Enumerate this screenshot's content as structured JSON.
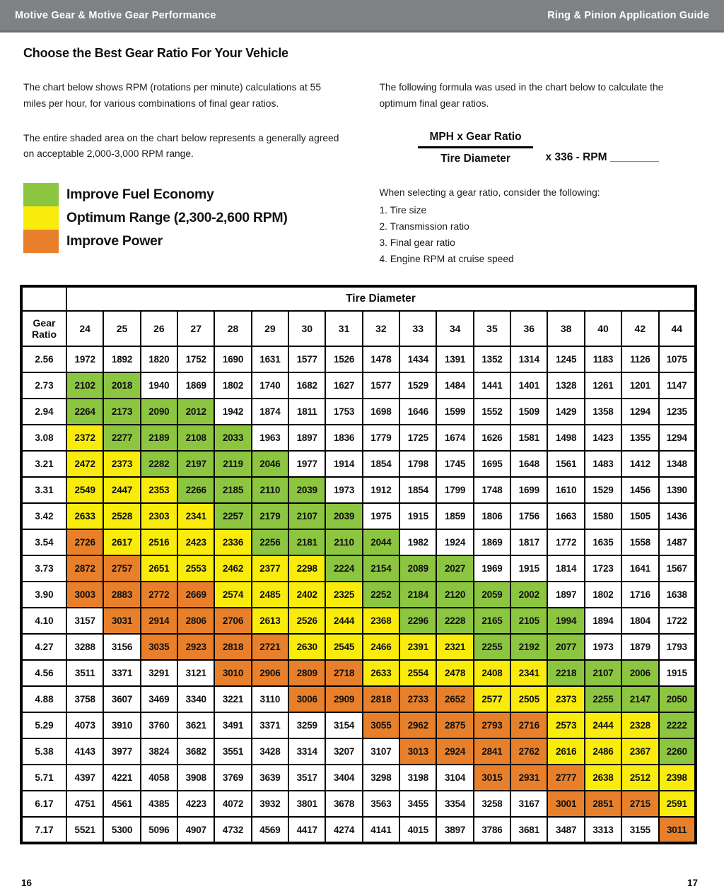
{
  "header": {
    "left": "Motive Gear & Motive Gear Performance",
    "right": "Ring & Pinion Application Guide"
  },
  "page": {
    "title": "Choose the Best Gear Ratio For Your Vehicle",
    "left_para1": "The chart below shows RPM (rotations per minute) calculations at 55 miles per hour, for various combinations of final gear ratios.",
    "left_para2": "The entire shaded area on the chart below represents a generally agreed on acceptable 2,000-3,000 RPM range.",
    "right_para": "The following formula was used in the chart below to calculate the optimum final gear ratios.",
    "page_number_left": "16",
    "page_number_right": "17"
  },
  "legend": [
    {
      "label": "Improve Fuel Economy",
      "color": "#8cc540",
      "meaning": "green"
    },
    {
      "label": "Optimum Range (2,300-2,600 RPM)",
      "color": "#f9ec0c",
      "meaning": "yellow"
    },
    {
      "label": "Improve Power",
      "color": "#e8802b",
      "meaning": "orange"
    }
  ],
  "formula": {
    "numerator": "MPH x Gear Ratio",
    "denominator": "Tire Diameter",
    "suffix": "x 336 - RPM ________"
  },
  "considerations": {
    "intro": "When selecting a gear ratio, consider the following:",
    "items": [
      "1. Tire size",
      "2. Transmission ratio",
      "3. Final gear ratio",
      "4. Engine RPM at cruise speed"
    ]
  },
  "colors": {
    "header_gray": "#7f8285",
    "table_border": "#000000",
    "cell_map": {
      "w": "#ffffff",
      "g": "#8cc540",
      "y": "#f9ec0c",
      "o": "#e8802b"
    }
  },
  "chart_data": {
    "type": "table",
    "title": "RPM at 55 MPH by gear ratio and tire diameter",
    "col_group_label": "Tire Diameter",
    "row_label": "Gear Ratio",
    "columns": [
      "24",
      "25",
      "26",
      "27",
      "28",
      "29",
      "30",
      "31",
      "32",
      "33",
      "34",
      "35",
      "36",
      "38",
      "40",
      "42",
      "44"
    ],
    "color_legend": {
      "g": "Improve Fuel Economy",
      "y": "Optimum Range (2,300-2,600 RPM)",
      "o": "Improve Power",
      "w": "unshaded"
    },
    "rows": [
      {
        "ratio": "2.56",
        "values": [
          1972,
          1892,
          1820,
          1752,
          1690,
          1631,
          1577,
          1526,
          1478,
          1434,
          1391,
          1352,
          1314,
          1245,
          1183,
          1126,
          1075
        ],
        "colors": "wwwwwwwwwwwwwwwww"
      },
      {
        "ratio": "2.73",
        "values": [
          2102,
          2018,
          1940,
          1869,
          1802,
          1740,
          1682,
          1627,
          1577,
          1529,
          1484,
          1441,
          1401,
          1328,
          1261,
          1201,
          1147
        ],
        "colors": "ggwwwwwwwwwwwwwww"
      },
      {
        "ratio": "2.94",
        "values": [
          2264,
          2173,
          2090,
          2012,
          1942,
          1874,
          1811,
          1753,
          1698,
          1646,
          1599,
          1552,
          1509,
          1429,
          1358,
          1294,
          1235
        ],
        "colors": "ggggwwwwwwwwwwwww"
      },
      {
        "ratio": "3.08",
        "values": [
          2372,
          2277,
          2189,
          2108,
          2033,
          1963,
          1897,
          1836,
          1779,
          1725,
          1674,
          1626,
          1581,
          1498,
          1423,
          1355,
          1294
        ],
        "colors": "yggggwwwwwwwwwwww"
      },
      {
        "ratio": "3.21",
        "values": [
          2472,
          2373,
          2282,
          2197,
          2119,
          2046,
          1977,
          1914,
          1854,
          1798,
          1745,
          1695,
          1648,
          1561,
          1483,
          1412,
          1348
        ],
        "colors": "yyggggwwwwwwwwwww"
      },
      {
        "ratio": "3.31",
        "values": [
          2549,
          2447,
          2353,
          2266,
          2185,
          2110,
          2039,
          1973,
          1912,
          1854,
          1799,
          1748,
          1699,
          1610,
          1529,
          1456,
          1390
        ],
        "colors": "yyyggggwwwwwwwwww"
      },
      {
        "ratio": "3.42",
        "values": [
          2633,
          2528,
          2303,
          2341,
          2257,
          2179,
          2107,
          2039,
          1975,
          1915,
          1859,
          1806,
          1756,
          1663,
          1580,
          1505,
          1436
        ],
        "colors": "yyyyggggwwwwwwwww"
      },
      {
        "ratio": "3.54",
        "values": [
          2726,
          2617,
          2516,
          2423,
          2336,
          2256,
          2181,
          2110,
          2044,
          1982,
          1924,
          1869,
          1817,
          1772,
          1635,
          1558,
          1487
        ],
        "colors": "oyyyyggggwwwwwwww"
      },
      {
        "ratio": "3.73",
        "values": [
          2872,
          2757,
          2651,
          2553,
          2462,
          2377,
          2298,
          2224,
          2154,
          2089,
          2027,
          1969,
          1915,
          1814,
          1723,
          1641,
          1567
        ],
        "colors": "ooyyyyyggggwwwwww"
      },
      {
        "ratio": "3.90",
        "values": [
          3003,
          2883,
          2772,
          2669,
          2574,
          2485,
          2402,
          2325,
          2252,
          2184,
          2120,
          2059,
          2002,
          1897,
          1802,
          1716,
          1638
        ],
        "colors": "ooooyyyygggggwwww"
      },
      {
        "ratio": "4.10",
        "values": [
          3157,
          3031,
          2914,
          2806,
          2706,
          2613,
          2526,
          2444,
          2368,
          2296,
          2228,
          2165,
          2105,
          1994,
          1894,
          1804,
          1722
        ],
        "colors": "wooooyyyygggggwww"
      },
      {
        "ratio": "4.27",
        "values": [
          3288,
          3156,
          3035,
          2923,
          2818,
          2721,
          2630,
          2545,
          2466,
          2391,
          2321,
          2255,
          2192,
          2077,
          1973,
          1879,
          1793
        ],
        "colors": "wwooooyyyyygggwww"
      },
      {
        "ratio": "4.56",
        "values": [
          3511,
          3371,
          3291,
          3121,
          3010,
          2906,
          2809,
          2718,
          2633,
          2554,
          2478,
          2408,
          2341,
          2218,
          2107,
          2006,
          1915
        ],
        "colors": "wwwwooooyyyyygggw"
      },
      {
        "ratio": "4.88",
        "values": [
          3758,
          3607,
          3469,
          3340,
          3221,
          3110,
          3006,
          2909,
          2818,
          2733,
          2652,
          2577,
          2505,
          2373,
          2255,
          2147,
          2050
        ],
        "colors": "wwwwwwoooooyyyggg"
      },
      {
        "ratio": "5.29",
        "values": [
          4073,
          3910,
          3760,
          3621,
          3491,
          3371,
          3259,
          3154,
          3055,
          2962,
          2875,
          2793,
          2716,
          2573,
          2444,
          2328,
          2222
        ],
        "colors": "wwwwwwwwoooooyyyg"
      },
      {
        "ratio": "5.38",
        "values": [
          4143,
          3977,
          3824,
          3682,
          3551,
          3428,
          3314,
          3207,
          3107,
          3013,
          2924,
          2841,
          2762,
          2616,
          2486,
          2367,
          2260
        ],
        "colors": "wwwwwwwwwooooyyyg"
      },
      {
        "ratio": "5.71",
        "values": [
          4397,
          4221,
          4058,
          3908,
          3769,
          3639,
          3517,
          3404,
          3298,
          3198,
          3104,
          3015,
          2931,
          2777,
          2638,
          2512,
          2398
        ],
        "colors": "wwwwwwwwwwwoooyyy"
      },
      {
        "ratio": "6.17",
        "values": [
          4751,
          4561,
          4385,
          4223,
          4072,
          3932,
          3801,
          3678,
          3563,
          3455,
          3354,
          3258,
          3167,
          3001,
          2851,
          2715,
          2591
        ],
        "colors": "wwwwwwwwwwwwwoooy"
      },
      {
        "ratio": "7.17",
        "values": [
          5521,
          5300,
          5096,
          4907,
          4732,
          4569,
          4417,
          4274,
          4141,
          4015,
          3897,
          3786,
          3681,
          3487,
          3313,
          3155,
          3011
        ],
        "colors": "wwwwwwwwwwwwwwwwo"
      }
    ]
  }
}
